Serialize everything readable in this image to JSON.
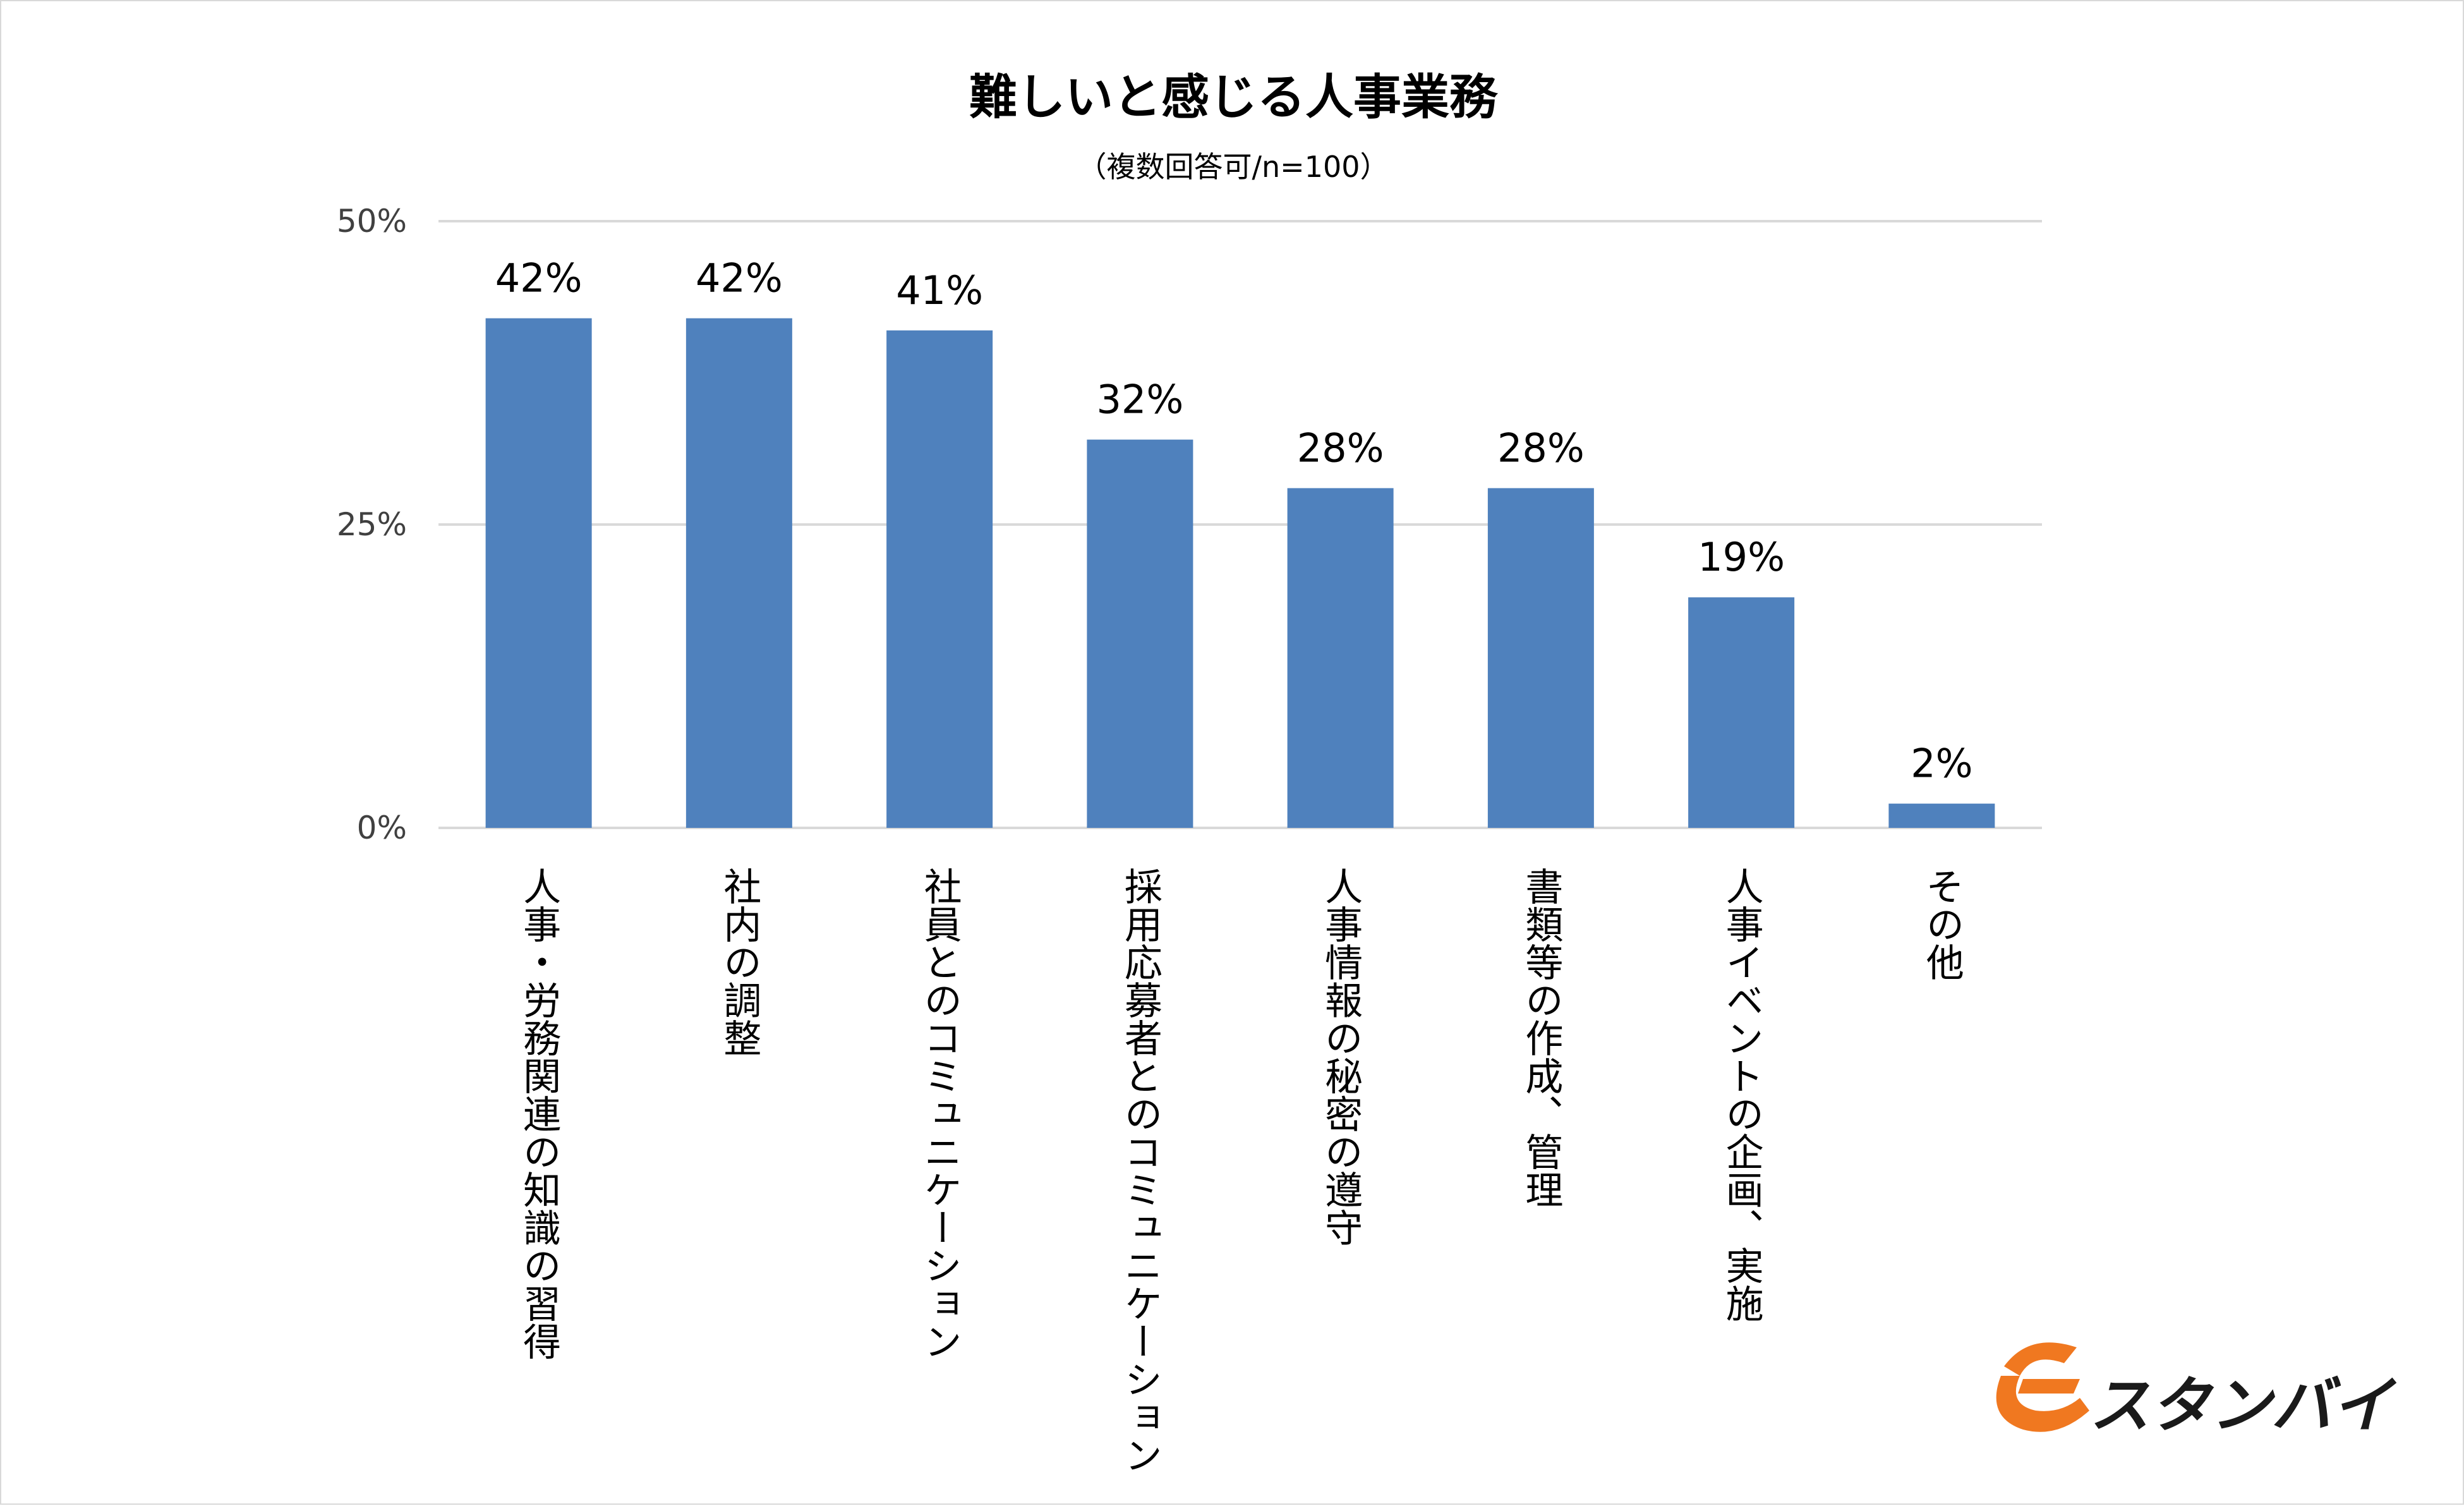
{
  "chart_data": {
    "type": "bar",
    "title": "難しいと感じる人事業務",
    "subtitle": "（複数回答可/n=100）",
    "categories": [
      "人事・労務関連の知識の習得",
      "社内の調整",
      "社員とのコミュニケーション",
      "採用応募者とのコミュニケーション",
      "人事情報の秘密の遵守",
      "書類等の作成、管理",
      "人事イベントの企画、実施",
      "その他"
    ],
    "values": [
      42,
      42,
      41,
      32,
      28,
      28,
      19,
      2
    ],
    "value_labels": [
      "42%",
      "42%",
      "41%",
      "32%",
      "28%",
      "28%",
      "19%",
      "2%"
    ],
    "yticks": [
      0,
      25,
      50
    ],
    "ytick_labels": [
      "0%",
      "25%",
      "50%"
    ],
    "ylim": [
      0,
      50
    ],
    "grid": true,
    "legend": "none",
    "bar_color": "#4f81bd",
    "grid_color": "#d9d9d9"
  },
  "logo": {
    "text": "スタンバイ",
    "mark_color": "#f07820"
  }
}
